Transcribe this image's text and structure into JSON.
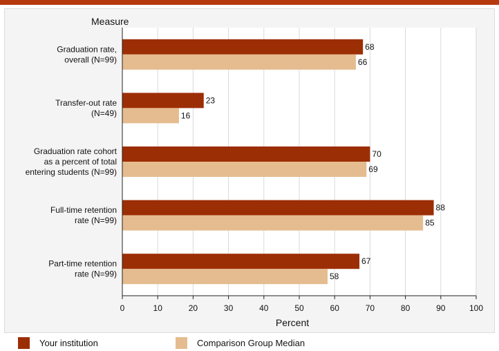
{
  "colors": {
    "accent": "#b5390e",
    "your_institution": "#9c2e05",
    "comparison": "#e5bc8f"
  },
  "chart_data": {
    "type": "bar",
    "orientation": "horizontal",
    "category_axis_title": "Measure",
    "xlabel": "Percent",
    "xlim": [
      0,
      100
    ],
    "xticks": [
      0,
      10,
      20,
      30,
      40,
      50,
      60,
      70,
      80,
      90,
      100
    ],
    "categories": [
      [
        "Graduation rate,",
        "overall (N=99)"
      ],
      [
        "Transfer-out rate",
        "(N=49)"
      ],
      [
        "Graduation rate cohort",
        "as a percent of total",
        "entering students (N=99)"
      ],
      [
        "Full-time retention",
        "rate (N=99)"
      ],
      [
        "Part-time retention",
        "rate (N=99)"
      ]
    ],
    "series": [
      {
        "name": "Your institution",
        "color": "#9c2e05",
        "values": [
          68,
          23,
          70,
          88,
          67
        ]
      },
      {
        "name": "Comparison Group Median",
        "color": "#e5bc8f",
        "values": [
          66,
          16,
          69,
          85,
          58
        ]
      }
    ],
    "data_labels": true,
    "grid": true,
    "legend_position": "bottom"
  }
}
